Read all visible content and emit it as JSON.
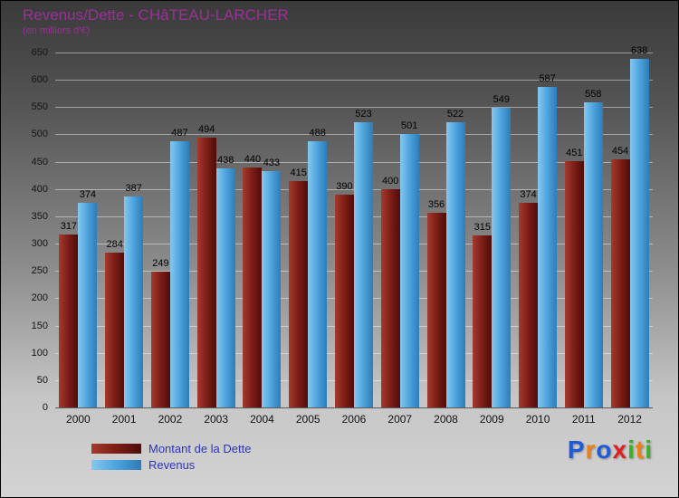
{
  "header": {
    "title": "Revenus/Dette - CHâTEAU-LARCHER",
    "subtitle": "(en milliers d'€)",
    "title_color": "#9b3097"
  },
  "chart_data": {
    "type": "bar",
    "title": "Revenus/Dette - CHâTEAU-LARCHER",
    "subtitle": "(en milliers d'€)",
    "categories": [
      "2000",
      "2001",
      "2002",
      "2003",
      "2004",
      "2005",
      "2006",
      "2007",
      "2008",
      "2009",
      "2010",
      "2011",
      "2012"
    ],
    "series": [
      {
        "name": "Montant de la Dette",
        "color": "#7c1d16",
        "values": [
          317,
          284,
          249,
          494,
          440,
          415,
          390,
          400,
          356,
          315,
          374,
          451,
          454
        ]
      },
      {
        "name": "Revenus",
        "color": "#4da3dd",
        "values": [
          374,
          387,
          487,
          438,
          433,
          488,
          523,
          501,
          522,
          549,
          587,
          558,
          638
        ]
      }
    ],
    "ylim": [
      0,
      650
    ],
    "ytick_step": 50,
    "grid": true,
    "value_labels": true,
    "legend_position": "bottom-left"
  },
  "legend": {
    "text_color": "#2b35c0"
  },
  "logo": {
    "text": "Proxiti",
    "letters": [
      {
        "ch": "P",
        "color": "#1f5bd8"
      },
      {
        "ch": "r",
        "color": "#f07f13"
      },
      {
        "ch": "o",
        "color": "#1f5bd8"
      },
      {
        "ch": "x",
        "color": "#e01f1f"
      },
      {
        "ch": "i",
        "color": "#3fae29"
      },
      {
        "ch": "t",
        "color": "#f07f13"
      },
      {
        "ch": "i",
        "color": "#3fae29"
      }
    ]
  }
}
